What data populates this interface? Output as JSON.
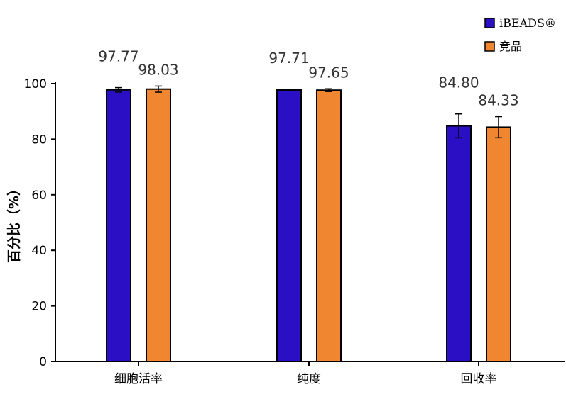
{
  "chart_data": {
    "type": "bar",
    "categories": [
      "细胞活率",
      "纯度",
      "回收率"
    ],
    "series": [
      {
        "name": "iBEADS®",
        "color": "#2a0fc4",
        "values": [
          97.77,
          97.71,
          84.8
        ],
        "errors": [
          0.8,
          0.3,
          4.3
        ]
      },
      {
        "name": "竞品",
        "color": "#f0862f",
        "values": [
          98.03,
          97.65,
          84.33
        ],
        "errors": [
          1.1,
          0.5,
          3.8
        ]
      }
    ],
    "data_labels": [
      [
        "97.77",
        "97.71",
        "84.80"
      ],
      [
        "98.03",
        "97.65",
        "84.33"
      ]
    ],
    "ylabel": "百分比（%）",
    "xlabel": "",
    "ylim": [
      0,
      100
    ],
    "yticks": [
      "0",
      "20",
      "40",
      "60",
      "80",
      "100"
    ],
    "legend_position": "top-right",
    "grid": false
  }
}
